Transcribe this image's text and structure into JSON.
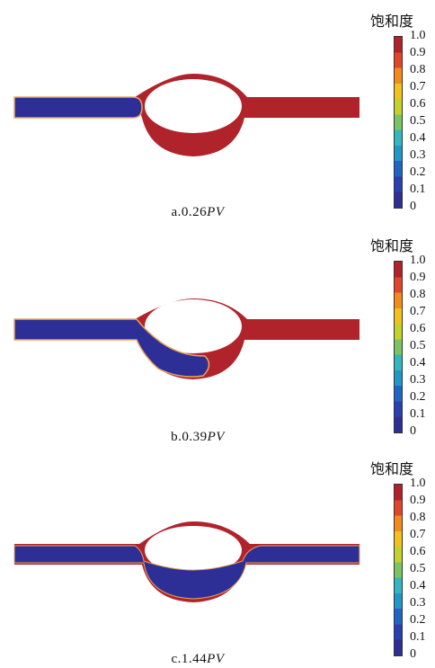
{
  "colors": {
    "water": "#2e2f96",
    "oil": "#b1232b",
    "interface": "#e8a45a",
    "background": "#ffffff"
  },
  "legend": {
    "title": "饱和度",
    "ticks": [
      "1.0",
      "0.9",
      "0.8",
      "0.7",
      "0.6",
      "0.5",
      "0.4",
      "0.3",
      "0.2",
      "0.1",
      "0"
    ],
    "stops": [
      "#2e2f96",
      "#2a3fb0",
      "#1f66c2",
      "#2196c9",
      "#33b6c0",
      "#7cc461",
      "#c3d12f",
      "#f2c01f",
      "#f28a1e",
      "#e2462a",
      "#b1232b"
    ]
  },
  "panels": [
    {
      "id": "a",
      "caption_prefix": "a.0.26",
      "caption_unit": "PV"
    },
    {
      "id": "b",
      "caption_prefix": "b.0.39",
      "caption_unit": "PV"
    },
    {
      "id": "c",
      "caption_prefix": "c.1.44",
      "caption_unit": "PV"
    }
  ]
}
